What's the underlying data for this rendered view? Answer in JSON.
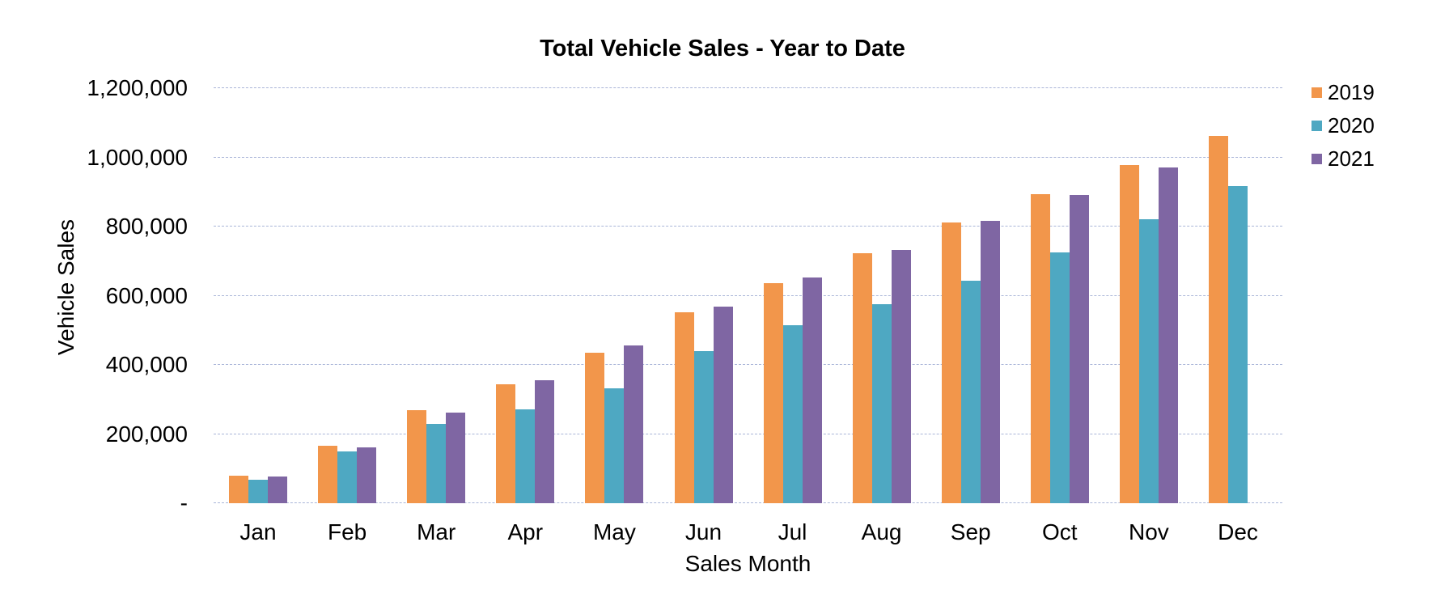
{
  "chart_data": {
    "type": "bar",
    "title": "Total Vehicle Sales - Year to Date",
    "xlabel": "Sales Month",
    "ylabel": "Vehicle Sales",
    "categories": [
      "Jan",
      "Feb",
      "Mar",
      "Apr",
      "May",
      "Jun",
      "Jul",
      "Aug",
      "Sep",
      "Oct",
      "Nov",
      "Dec"
    ],
    "series": [
      {
        "name": "2019",
        "color": "#F2964B",
        "values": [
          80000,
          167000,
          268000,
          343000,
          436000,
          553000,
          637000,
          722000,
          812000,
          893000,
          979000,
          1062000
        ]
      },
      {
        "name": "2020",
        "color": "#4EA8C2",
        "values": [
          69000,
          150000,
          230000,
          271000,
          332000,
          441000,
          514000,
          576000,
          644000,
          725000,
          820000,
          918000
        ]
      },
      {
        "name": "2021",
        "color": "#7F66A3",
        "values": [
          78000,
          161000,
          263000,
          355000,
          456000,
          568000,
          652000,
          732000,
          817000,
          892000,
          971000,
          null
        ]
      }
    ],
    "ylim": [
      0,
      1200000
    ],
    "ytick_step": 200000,
    "ytick_labels": [
      "-",
      "200,000",
      "400,000",
      "600,000",
      "800,000",
      "1,000,000",
      "1,200,000"
    ],
    "grid": "horizontal-dashed",
    "gridline_color": "#A9B5D8",
    "legend_position": "top-right",
    "legend_entries": [
      "2019",
      "2020",
      "2021"
    ]
  }
}
